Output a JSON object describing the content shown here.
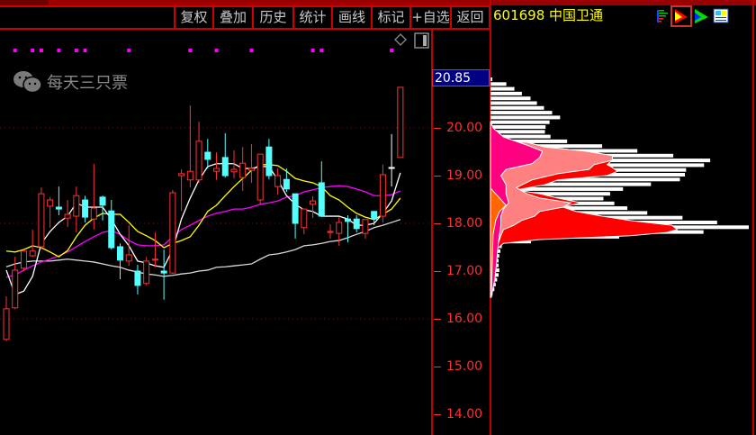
{
  "toolbar": {
    "buttons": [
      "复权",
      "叠加",
      "历史",
      "统计",
      "画线",
      "标记",
      "+自选",
      "返回"
    ]
  },
  "stock": {
    "code": "601698",
    "name": "中国卫通"
  },
  "icons": [
    "bar-list-icon",
    "chip-distribution-icon",
    "trend-arrow-icon",
    "window-layout-icon"
  ],
  "selected_icon": "chip-distribution-icon",
  "watermark": "每天三只票",
  "colors": {
    "up": "#ff3232",
    "down": "#54ffff",
    "ma5": "#ffffff",
    "ma10": "#ffff00",
    "ma20": "#ff00ff",
    "ma60": "#d8d8d8",
    "axis": "#ff3030",
    "grid": "#a00000",
    "signal": "#ff00ff",
    "chip_outer": "#ff0000",
    "chip_mid": "#ff8080",
    "chip_inner": "#ff0080",
    "chip_recent": "#ff6600"
  },
  "chart_data": {
    "type": "candlestick",
    "y_ticks": [
      "20.00",
      "19.00",
      "18.00",
      "17.00",
      "16.00",
      "15.00",
      "14.00"
    ],
    "ylim": [
      13.75,
      21.6
    ],
    "grid_prices": [
      20,
      18,
      16
    ],
    "last_price": "20.85",
    "candles": [
      [
        15.57,
        16.47,
        15.53,
        16.21
      ],
      [
        16.23,
        17.3,
        16.2,
        17.02
      ],
      [
        17.06,
        17.45,
        17.0,
        17.42
      ],
      [
        17.32,
        17.87,
        17.3,
        17.42
      ],
      [
        17.51,
        18.75,
        17.45,
        18.62
      ],
      [
        18.36,
        18.55,
        17.91,
        18.49
      ],
      [
        18.34,
        18.77,
        18.17,
        18.3
      ],
      [
        18.11,
        18.49,
        17.92,
        18.19
      ],
      [
        18.15,
        18.77,
        17.81,
        18.58
      ],
      [
        18.49,
        18.58,
        18.02,
        18.13
      ],
      [
        18.09,
        19.25,
        17.87,
        18.32
      ],
      [
        18.55,
        18.58,
        18.06,
        18.38
      ],
      [
        18.26,
        18.49,
        17.45,
        17.49
      ],
      [
        17.51,
        17.58,
        16.83,
        17.23
      ],
      [
        17.21,
        17.96,
        17.11,
        17.34
      ],
      [
        17.0,
        17.13,
        16.51,
        16.7
      ],
      [
        16.74,
        17.3,
        16.7,
        17.21
      ],
      [
        17.23,
        17.81,
        17.08,
        17.25
      ],
      [
        17.0,
        17.45,
        16.4,
        16.96
      ],
      [
        16.96,
        18.7,
        16.94,
        18.64
      ],
      [
        19.0,
        19.13,
        18.26,
        19.04
      ],
      [
        18.91,
        20.47,
        18.75,
        19.09
      ],
      [
        18.91,
        20.13,
        18.85,
        19.72
      ],
      [
        19.49,
        19.77,
        19.15,
        19.34
      ],
      [
        19.09,
        19.49,
        18.91,
        19.15
      ],
      [
        19.38,
        19.89,
        18.96,
        19.0
      ],
      [
        19.08,
        19.53,
        18.94,
        19.13
      ],
      [
        18.96,
        19.6,
        18.68,
        19.26
      ],
      [
        19.11,
        19.66,
        18.85,
        19.15
      ],
      [
        18.49,
        19.45,
        18.4,
        19.45
      ],
      [
        19.6,
        19.77,
        18.92,
        19.0
      ],
      [
        18.77,
        19.15,
        18.6,
        19.0
      ],
      [
        18.92,
        19.15,
        18.66,
        18.72
      ],
      [
        18.62,
        18.62,
        17.68,
        18.0
      ],
      [
        17.91,
        18.3,
        17.77,
        18.3
      ],
      [
        18.4,
        18.57,
        18.11,
        18.47
      ],
      [
        18.85,
        19.3,
        18.13,
        18.15
      ],
      [
        17.81,
        17.98,
        17.68,
        17.83
      ],
      [
        17.79,
        18.13,
        17.53,
        18.02
      ],
      [
        18.09,
        18.17,
        17.6,
        18.04
      ],
      [
        18.09,
        18.17,
        17.81,
        17.89
      ],
      [
        17.79,
        18.08,
        17.68,
        18.08
      ],
      [
        18.25,
        18.25,
        17.96,
        18.09
      ],
      [
        18.15,
        19.23,
        18.02,
        19.02
      ],
      [
        19.17,
        19.87,
        18.77,
        19.17
      ],
      [
        19.38,
        20.85,
        19.38,
        20.85
      ]
    ],
    "ma5": [
      17.02,
      16.51,
      16.58,
      16.89,
      17.58,
      17.83,
      18.02,
      18.15,
      18.43,
      18.34,
      18.34,
      18.34,
      18.09,
      17.77,
      17.53,
      17.21,
      17.17,
      17.11,
      17.08,
      17.45,
      18.09,
      18.53,
      18.91,
      19.19,
      19.25,
      19.25,
      19.25,
      19.15,
      19.15,
      19.19,
      19.19,
      18.91,
      18.58,
      18.4,
      18.28,
      18.25,
      18.15,
      18.15,
      18.15,
      18.09,
      17.96,
      17.96,
      18.0,
      18.21,
      18.47,
      19.06
    ],
    "ma10": [
      17.42,
      17.4,
      17.45,
      17.53,
      17.49,
      17.4,
      17.3,
      17.43,
      17.72,
      17.96,
      18.11,
      18.21,
      18.19,
      18.19,
      18.02,
      17.83,
      17.74,
      17.64,
      17.49,
      17.58,
      17.64,
      17.72,
      17.96,
      18.25,
      18.38,
      18.58,
      18.77,
      18.94,
      19.11,
      19.23,
      19.23,
      19.21,
      19.09,
      18.94,
      18.89,
      18.85,
      18.77,
      18.58,
      18.49,
      18.34,
      18.21,
      18.13,
      18.08,
      18.19,
      18.3,
      18.53
    ],
    "ma20": [
      16.87,
      16.92,
      17.02,
      17.11,
      17.19,
      17.25,
      17.32,
      17.4,
      17.51,
      17.62,
      17.72,
      17.81,
      17.85,
      17.77,
      17.64,
      17.55,
      17.53,
      17.53,
      17.55,
      17.72,
      17.87,
      17.96,
      18.06,
      18.15,
      18.21,
      18.25,
      18.3,
      18.3,
      18.34,
      18.4,
      18.43,
      18.47,
      18.55,
      18.58,
      18.66,
      18.7,
      18.75,
      18.77,
      18.79,
      18.77,
      18.72,
      18.66,
      18.58,
      18.58,
      18.6,
      18.68
    ],
    "ma60": [
      17.09,
      17.15,
      17.19,
      17.21,
      17.21,
      17.21,
      17.23,
      17.25,
      17.23,
      17.21,
      17.19,
      17.15,
      17.11,
      17.08,
      17.02,
      16.98,
      16.94,
      16.92,
      16.89,
      16.91,
      16.94,
      16.96,
      17.0,
      17.02,
      17.08,
      17.09,
      17.11,
      17.13,
      17.15,
      17.25,
      17.34,
      17.36,
      17.4,
      17.45,
      17.53,
      17.55,
      17.58,
      17.62,
      17.64,
      17.7,
      17.77,
      17.83,
      17.91,
      17.96,
      18.02,
      18.08
    ],
    "signal_indices": [
      1,
      3,
      4,
      6,
      8,
      9,
      14,
      21,
      24,
      28,
      35,
      36,
      44
    ],
    "chip_profile": {
      "total": [
        [
          21.07,
          0
        ],
        [
          20.94,
          7
        ],
        [
          20.79,
          11
        ],
        [
          20.64,
          16
        ],
        [
          20.51,
          19
        ],
        [
          20.38,
          23
        ],
        [
          20.26,
          27
        ],
        [
          20.17,
          23
        ],
        [
          20.04,
          21
        ],
        [
          19.89,
          21
        ],
        [
          19.75,
          30
        ],
        [
          19.6,
          51
        ],
        [
          19.47,
          68
        ],
        [
          19.38,
          85
        ],
        [
          19.28,
          84
        ],
        [
          19.15,
          75
        ],
        [
          19.0,
          75
        ],
        [
          18.91,
          71
        ],
        [
          18.81,
          54
        ],
        [
          18.68,
          47
        ],
        [
          18.57,
          43
        ],
        [
          18.38,
          51
        ],
        [
          18.25,
          61
        ],
        [
          18.15,
          75
        ],
        [
          18.06,
          87
        ],
        [
          17.96,
          100
        ],
        [
          17.91,
          95
        ],
        [
          17.81,
          71
        ],
        [
          17.74,
          43
        ],
        [
          17.68,
          19
        ],
        [
          17.58,
          4.5
        ],
        [
          17.4,
          3.5
        ],
        [
          17.21,
          3
        ],
        [
          17.02,
          3.5
        ],
        [
          16.83,
          2.4
        ],
        [
          16.64,
          1.4
        ],
        [
          16.49,
          0.3
        ]
      ],
      "outer": [
        [
          19.7,
          14
        ],
        [
          19.6,
          21
        ],
        [
          19.51,
          37
        ],
        [
          19.42,
          47
        ],
        [
          19.32,
          47
        ],
        [
          19.23,
          45
        ],
        [
          19.17,
          47
        ],
        [
          19.09,
          49
        ],
        [
          19.0,
          45
        ],
        [
          18.91,
          26
        ],
        [
          18.81,
          21
        ],
        [
          18.7,
          10
        ],
        [
          18.62,
          19
        ],
        [
          18.53,
          26
        ],
        [
          18.43,
          35
        ],
        [
          18.34,
          28
        ],
        [
          18.25,
          33
        ],
        [
          18.15,
          43
        ],
        [
          18.06,
          54
        ],
        [
          17.96,
          70
        ],
        [
          17.87,
          72
        ],
        [
          17.81,
          68
        ],
        [
          17.74,
          54
        ],
        [
          17.66,
          19
        ],
        [
          17.58,
          5
        ],
        [
          17.49,
          3
        ]
      ],
      "mid": [
        [
          19.7,
          14
        ],
        [
          19.6,
          21
        ],
        [
          19.51,
          37
        ],
        [
          19.42,
          47
        ],
        [
          19.32,
          47
        ],
        [
          19.23,
          40
        ],
        [
          19.13,
          38
        ],
        [
          19.04,
          26
        ],
        [
          18.91,
          16
        ],
        [
          18.75,
          10
        ],
        [
          18.62,
          14
        ],
        [
          18.53,
          19
        ],
        [
          18.43,
          31
        ],
        [
          18.34,
          28
        ],
        [
          18.25,
          19
        ],
        [
          18.15,
          17
        ],
        [
          18.06,
          12
        ],
        [
          17.96,
          9
        ],
        [
          17.87,
          5
        ],
        [
          17.74,
          4
        ],
        [
          17.58,
          3
        ]
      ],
      "inner": [
        [
          20.13,
          0
        ],
        [
          20.0,
          1
        ],
        [
          19.81,
          5
        ],
        [
          19.62,
          15
        ],
        [
          19.51,
          20
        ],
        [
          19.38,
          19
        ],
        [
          19.25,
          16
        ],
        [
          19.13,
          6
        ],
        [
          19.0,
          4
        ],
        [
          18.81,
          6
        ],
        [
          18.62,
          6
        ],
        [
          18.43,
          7
        ],
        [
          18.3,
          5
        ],
        [
          18.15,
          4
        ],
        [
          17.96,
          4
        ],
        [
          17.77,
          3.5
        ],
        [
          17.58,
          3
        ],
        [
          17.21,
          2.4
        ],
        [
          16.83,
          1.7
        ],
        [
          16.45,
          0.3
        ]
      ],
      "recent": [
        [
          18.72,
          0.3
        ],
        [
          18.53,
          3.5
        ],
        [
          18.38,
          6
        ],
        [
          18.25,
          3.5
        ],
        [
          18.06,
          2
        ],
        [
          17.77,
          1
        ],
        [
          16.45,
          0.3
        ]
      ]
    }
  }
}
